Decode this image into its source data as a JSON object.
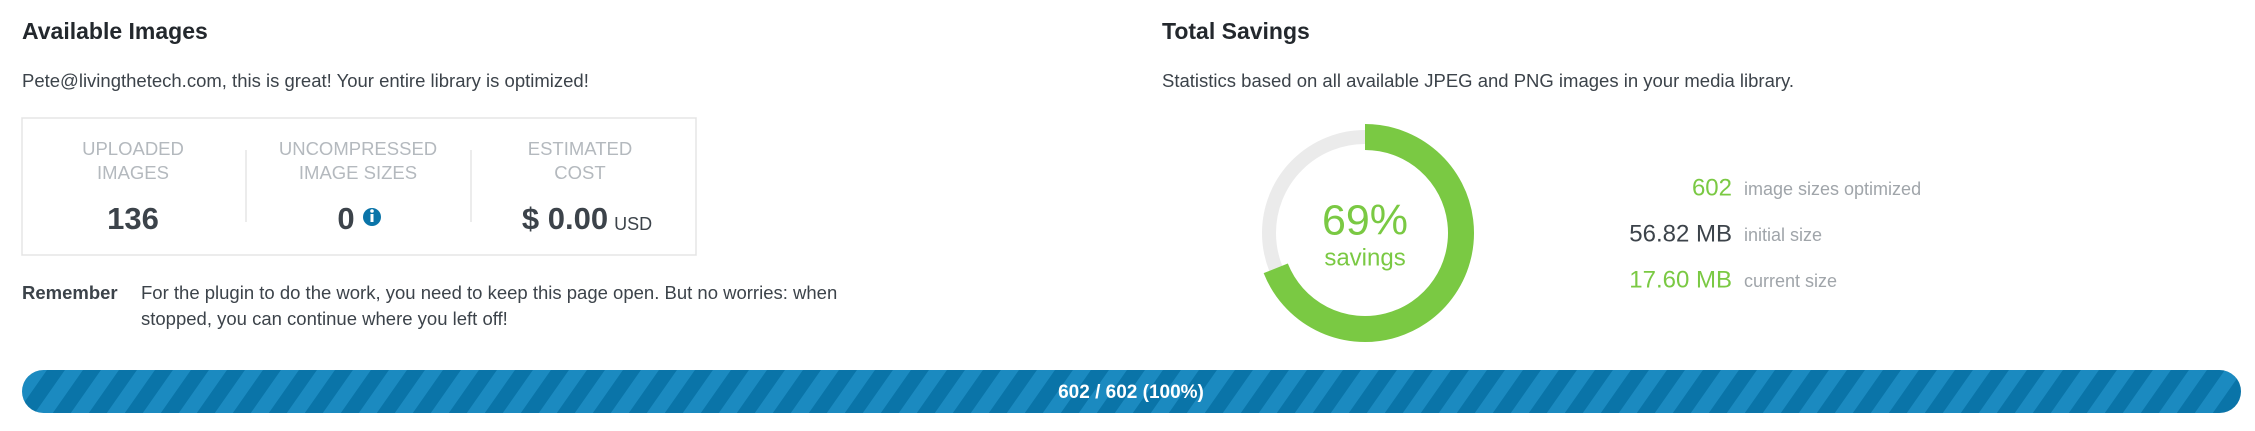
{
  "left": {
    "title": "Available Images",
    "message": "Pete@livingthetech.com, this is great! Your entire library is optimized!",
    "stats": [
      {
        "label_lines": [
          "UPLOADED",
          "IMAGES"
        ],
        "value": "136"
      },
      {
        "label_lines": [
          "UNCOMPRESSED",
          "IMAGE SIZES"
        ],
        "value": "0"
      },
      {
        "label_lines": [
          "ESTIMATED",
          "COST"
        ],
        "value": "$ 0.00",
        "unit": "USD"
      }
    ],
    "remember_label": "Remember",
    "remember_lines": [
      "For the plugin to do the work, you need to keep this page open. But no worries: when",
      "stopped, you can continue where you left off!"
    ]
  },
  "right": {
    "title": "Total Savings",
    "message": "Statistics based on all available JPEG and PNG images in your media library.",
    "savings": {
      "value": 69,
      "label": "69%"
    },
    "savings_caption": "savings",
    "rows": [
      {
        "value": "602",
        "label": "image sizes optimized"
      },
      {
        "value": "56.82 MB",
        "label": "initial size"
      },
      {
        "value": "17.60 MB",
        "label": "current size"
      }
    ]
  },
  "progress": {
    "value": 100,
    "label": "602 / 602 (100%)"
  }
}
